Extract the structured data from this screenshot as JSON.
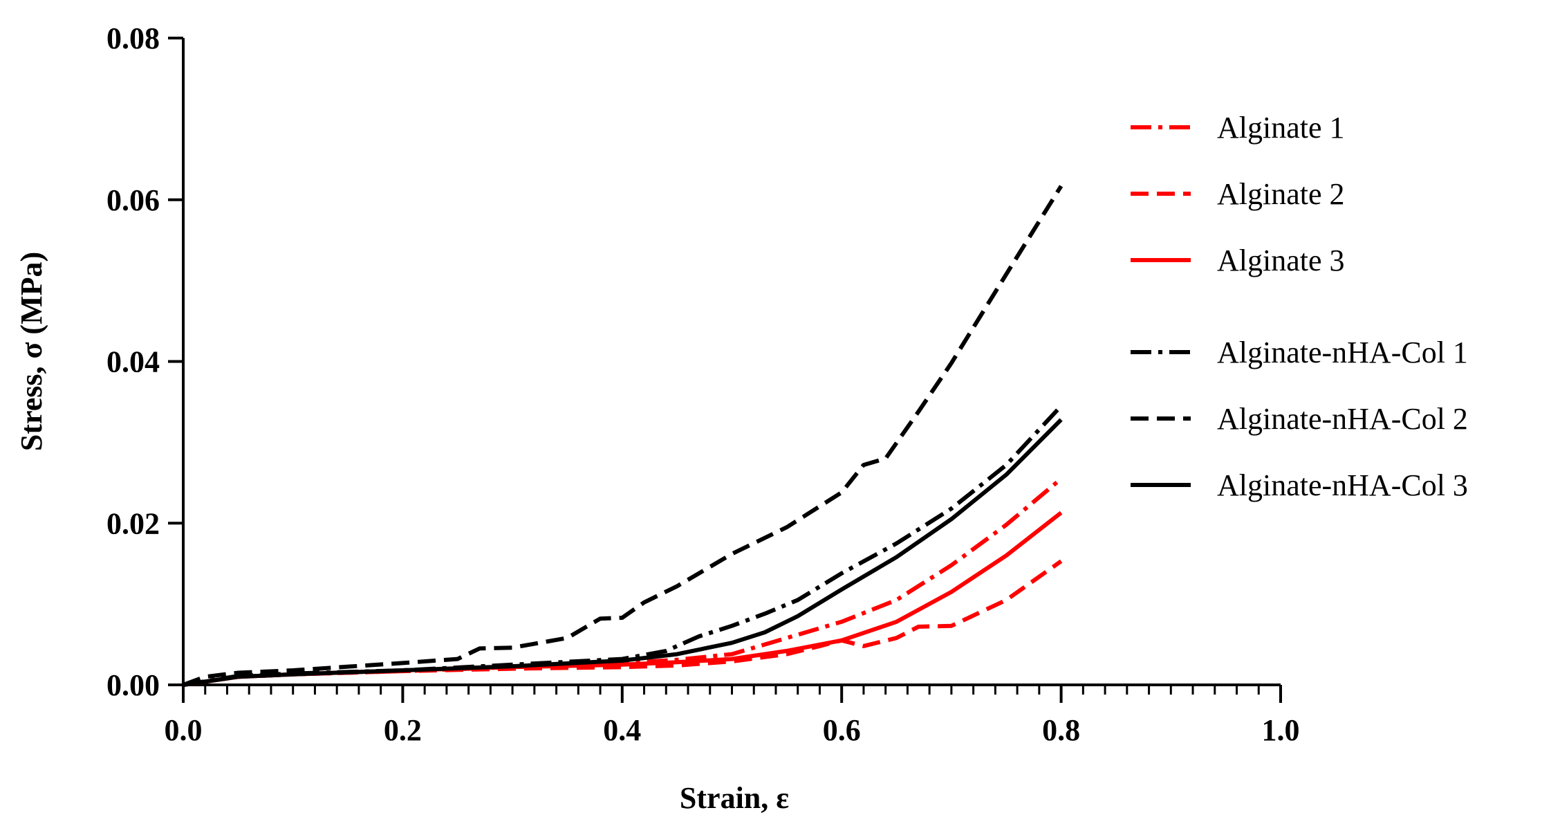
{
  "chart_data": {
    "type": "line",
    "title": "",
    "xlabel": "Strain, ε",
    "ylabel": "Stress, σ (MPa)",
    "xlim": [
      0.0,
      1.0
    ],
    "ylim": [
      0.0,
      0.08
    ],
    "x_ticks": [
      "0.0",
      "0.2",
      "0.4",
      "0.6",
      "0.8",
      "1.0"
    ],
    "y_ticks": [
      "0.00",
      "0.02",
      "0.04",
      "0.06",
      "0.08"
    ],
    "x_minor_tick_step": 0.02,
    "grid": false,
    "legend": "right",
    "series": [
      {
        "name": "Alginate 1",
        "color": "#ff0000",
        "dash": "dashdot",
        "x": [
          0.0,
          0.05,
          0.1,
          0.2,
          0.3,
          0.4,
          0.45,
          0.5,
          0.55,
          0.6,
          0.65,
          0.7,
          0.75,
          0.8
        ],
        "y": [
          0.0,
          0.001,
          0.0013,
          0.0017,
          0.0022,
          0.0027,
          0.0031,
          0.0038,
          0.0058,
          0.0078,
          0.0105,
          0.0148,
          0.0198,
          0.0255
        ]
      },
      {
        "name": "Alginate 2",
        "color": "#ff0000",
        "dash": "dash",
        "x": [
          0.0,
          0.05,
          0.1,
          0.2,
          0.3,
          0.4,
          0.45,
          0.5,
          0.55,
          0.58,
          0.6,
          0.62,
          0.65,
          0.67,
          0.7,
          0.75,
          0.8
        ],
        "y": [
          0.0,
          0.001,
          0.0013,
          0.0017,
          0.002,
          0.0022,
          0.0024,
          0.0029,
          0.0038,
          0.0048,
          0.0055,
          0.0048,
          0.0058,
          0.0072,
          0.0073,
          0.0105,
          0.0153
        ]
      },
      {
        "name": "Alginate 3",
        "color": "#ff0000",
        "dash": "solid",
        "x": [
          0.0,
          0.05,
          0.1,
          0.2,
          0.3,
          0.4,
          0.45,
          0.5,
          0.55,
          0.6,
          0.65,
          0.7,
          0.75,
          0.8
        ],
        "y": [
          0.0,
          0.001,
          0.0013,
          0.0018,
          0.0022,
          0.0025,
          0.0028,
          0.0032,
          0.0042,
          0.0055,
          0.0078,
          0.0115,
          0.016,
          0.0213
        ]
      },
      {
        "name": "Alginate-nHA-Col 1",
        "color": "#000000",
        "dash": "dashdot",
        "x": [
          0.0,
          0.05,
          0.1,
          0.2,
          0.3,
          0.4,
          0.44,
          0.47,
          0.5,
          0.53,
          0.56,
          0.6,
          0.65,
          0.7,
          0.75,
          0.8
        ],
        "y": [
          0.0,
          0.0011,
          0.0014,
          0.0018,
          0.0025,
          0.0032,
          0.0042,
          0.006,
          0.0073,
          0.0088,
          0.0105,
          0.0138,
          0.0175,
          0.0218,
          0.0272,
          0.0345
        ]
      },
      {
        "name": "Alginate-nHA-Col 2",
        "color": "#000000",
        "dash": "dash",
        "x": [
          0.0,
          0.02,
          0.05,
          0.1,
          0.2,
          0.25,
          0.27,
          0.3,
          0.35,
          0.38,
          0.4,
          0.42,
          0.45,
          0.5,
          0.55,
          0.6,
          0.62,
          0.64,
          0.67,
          0.7,
          0.75,
          0.8
        ],
        "y": [
          0.0,
          0.001,
          0.0015,
          0.0018,
          0.0027,
          0.0032,
          0.0045,
          0.0046,
          0.0058,
          0.0082,
          0.0083,
          0.0102,
          0.0122,
          0.0162,
          0.0195,
          0.0238,
          0.0272,
          0.028,
          0.0338,
          0.0398,
          0.0508,
          0.0617
        ]
      },
      {
        "name": "Alginate-nHA-Col 3",
        "color": "#000000",
        "dash": "solid",
        "x": [
          0.0,
          0.05,
          0.1,
          0.2,
          0.3,
          0.4,
          0.45,
          0.5,
          0.53,
          0.56,
          0.6,
          0.65,
          0.7,
          0.75,
          0.8
        ],
        "y": [
          0.0,
          0.001,
          0.0013,
          0.0018,
          0.0023,
          0.003,
          0.0038,
          0.0052,
          0.0065,
          0.0085,
          0.0118,
          0.0158,
          0.0205,
          0.026,
          0.0328
        ]
      }
    ]
  }
}
